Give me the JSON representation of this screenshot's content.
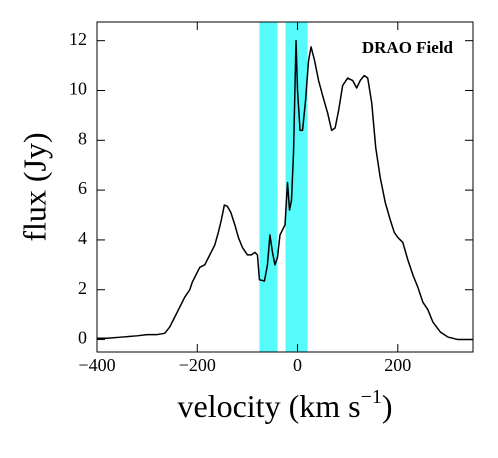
{
  "chart_data": {
    "type": "line",
    "xlabel": "velocity (km s",
    "xlabel_sup": "−1",
    "xlabel_end": ")",
    "ylabel": "flux (Jy)",
    "annotation": "DRAO Field",
    "x": [
      -400,
      -380,
      -350,
      -320,
      -300,
      -280,
      -265,
      -255,
      -245,
      -235,
      -225,
      -215,
      -210,
      -200,
      -195,
      -185,
      -175,
      -165,
      -158,
      -152,
      -146,
      -140,
      -133,
      -125,
      -118,
      -110,
      -100,
      -92,
      -85,
      -80,
      -76,
      -66,
      -60,
      -55,
      -50,
      -45,
      -40,
      -35,
      -30,
      -25,
      -20,
      -16,
      -12,
      -8,
      -3,
      0,
      5,
      10,
      16,
      22,
      27,
      34,
      42,
      50,
      60,
      68,
      75,
      82,
      90,
      100,
      110,
      118,
      125,
      133,
      140,
      148,
      156,
      165,
      175,
      185,
      193,
      200,
      210,
      220,
      230,
      240,
      250,
      260,
      270,
      285,
      300,
      320,
      350
    ],
    "series": [
      {
        "color": "#000000",
        "values": [
          0.05,
          0.05,
          0.1,
          0.15,
          0.2,
          0.2,
          0.25,
          0.5,
          0.9,
          1.3,
          1.7,
          2.0,
          2.3,
          2.7,
          2.9,
          3.0,
          3.4,
          3.8,
          4.3,
          4.8,
          5.4,
          5.35,
          5.1,
          4.6,
          4.1,
          3.7,
          3.4,
          3.4,
          3.5,
          3.4,
          2.4,
          2.35,
          3.0,
          4.2,
          3.5,
          3.0,
          3.3,
          4.2,
          4.4,
          4.6,
          6.3,
          5.2,
          5.6,
          7.5,
          12.0,
          10.0,
          8.4,
          8.4,
          9.6,
          11.2,
          11.75,
          11.2,
          10.4,
          9.8,
          9.1,
          8.4,
          8.5,
          9.2,
          10.2,
          10.5,
          10.4,
          10.1,
          10.4,
          10.6,
          10.5,
          9.5,
          7.7,
          6.5,
          5.5,
          4.8,
          4.3,
          4.1,
          3.9,
          3.2,
          2.6,
          2.1,
          1.5,
          1.2,
          0.7,
          0.3,
          0.1,
          0.0,
          0.0
        ]
      }
    ],
    "spans": [
      [
        -76,
        -40
      ],
      [
        -24,
        20
      ]
    ],
    "span_color": "#55fbfb",
    "xlim": [
      -400,
      350
    ],
    "ylim": [
      -0.5,
      12.75
    ],
    "xticks": [
      {
        "value": -400,
        "label": "−400"
      },
      {
        "value": -200,
        "label": "−200"
      },
      0,
      200
    ],
    "yticks": [
      0,
      2,
      4,
      6,
      8,
      10,
      12
    ]
  }
}
